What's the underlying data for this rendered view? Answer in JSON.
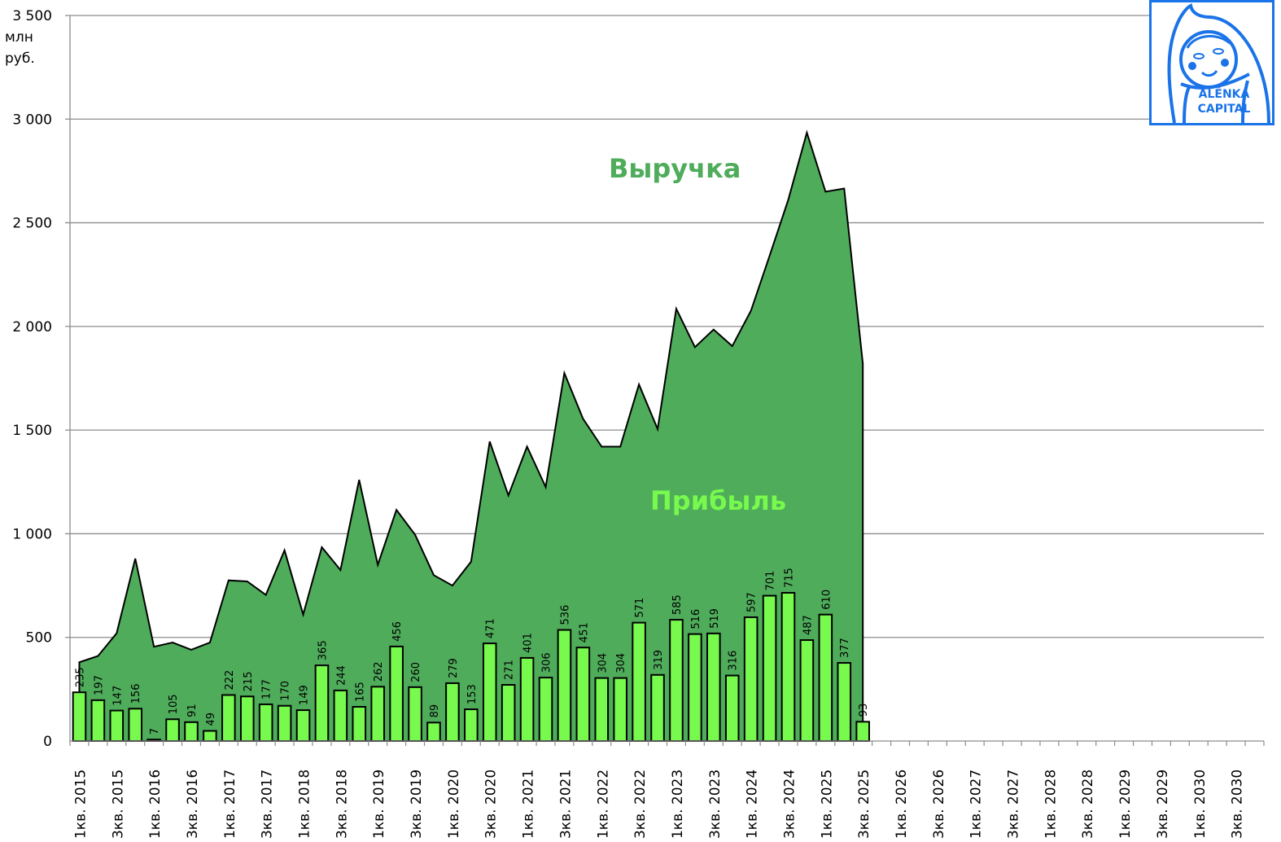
{
  "chart_data": {
    "type": "bar+area",
    "title": "",
    "ylabel": "млн руб.",
    "xlabel": "",
    "ylim": [
      0,
      3500
    ],
    "yticks": [
      0,
      500,
      1000,
      1500,
      2000,
      2500,
      3000,
      3500
    ],
    "ytick_labels": [
      "0",
      "500",
      "1 000",
      "1 500",
      "2 000",
      "2 500",
      "3 000",
      "3 500"
    ],
    "grid": true,
    "categories_count": 64,
    "xtick_labels": [
      "1кв. 2015",
      "3кв. 2015",
      "1кв. 2016",
      "3кв. 2016",
      "1кв. 2017",
      "3кв. 2017",
      "1кв. 2018",
      "3кв. 2018",
      "1кв. 2019",
      "3кв. 2019",
      "1кв. 2020",
      "3кв. 2020",
      "1кв. 2021",
      "3кв. 2021",
      "1кв. 2022",
      "3кв. 2022",
      "1кв. 2023",
      "3кв. 2023",
      "1кв. 2024",
      "3кв. 2024",
      "1кв. 2025",
      "3кв. 2025",
      "1кв. 2026",
      "3кв. 2026",
      "1кв. 2027",
      "3кв. 2027",
      "1кв. 2028",
      "3кв. 2028",
      "1кв. 2029",
      "3кв. 2029",
      "1кв. 2030",
      "3кв. 2030"
    ],
    "series": [
      {
        "name": "Выручка",
        "type": "area",
        "color": "#4fac5b",
        "values": [
          380,
          410,
          520,
          880,
          455,
          475,
          440,
          475,
          775,
          770,
          705,
          920,
          610,
          935,
          825,
          1260,
          850,
          1115,
          995,
          800,
          750,
          865,
          1445,
          1185,
          1420,
          1225,
          1775,
          1555,
          1420,
          1420,
          1720,
          1505,
          2085,
          1900,
          1985,
          1905,
          2075,
          2340,
          2610,
          2935,
          2650,
          2665,
          1820
        ]
      },
      {
        "name": "Прибыль",
        "type": "bar",
        "color": "#77f94e",
        "values": [
          235,
          197,
          147,
          156,
          7,
          105,
          91,
          49,
          222,
          215,
          177,
          170,
          149,
          365,
          244,
          165,
          262,
          456,
          260,
          89,
          279,
          153,
          471,
          271,
          401,
          306,
          536,
          451,
          304,
          304,
          571,
          319,
          585,
          516,
          519,
          316,
          597,
          701,
          715,
          487,
          610,
          377,
          93
        ]
      }
    ],
    "annotations": [
      {
        "text": "Выручка",
        "color": "#4fac5b"
      },
      {
        "text": "Прибыль",
        "color": "#77f94e"
      }
    ]
  },
  "axis": {
    "unit_line1": "млн",
    "unit_line2": "руб."
  },
  "labels": {
    "revenue": "Выручка",
    "profit": "Прибыль"
  },
  "logo": {
    "line1": "ALЁNKA",
    "line2": "CAPITAL",
    "color": "#1a73e8"
  }
}
